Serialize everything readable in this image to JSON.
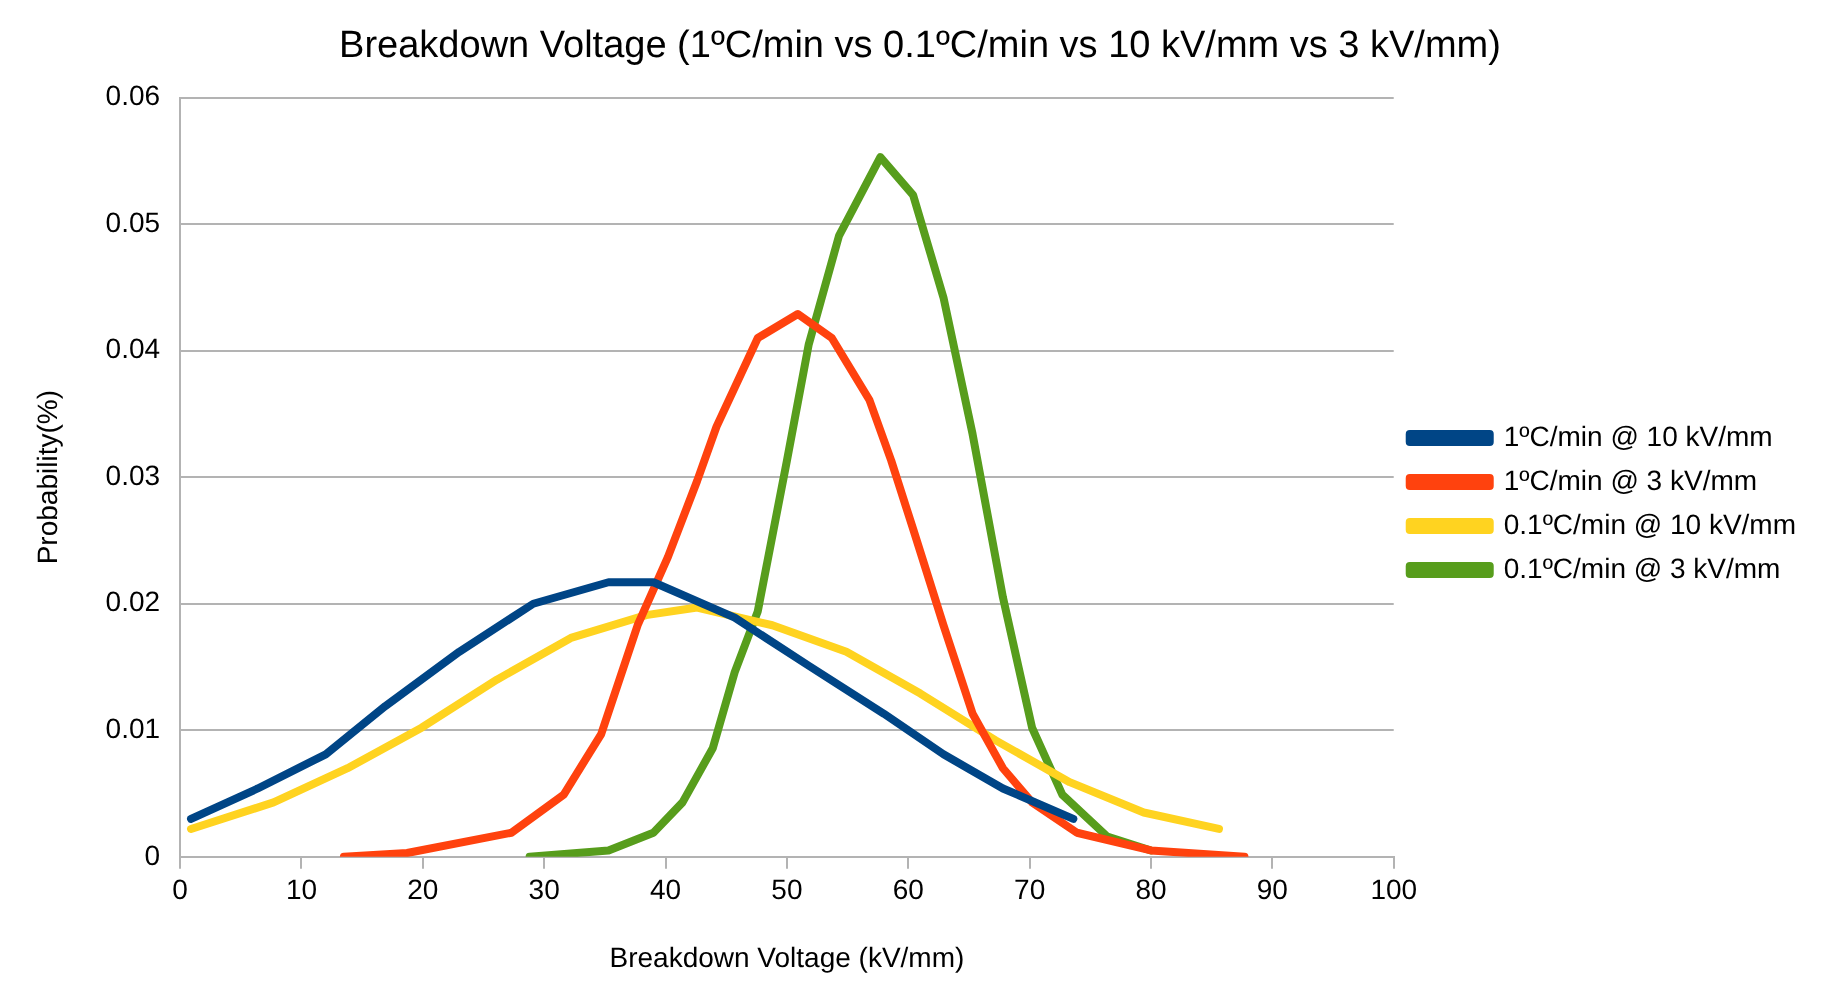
{
  "chart_data": {
    "type": "line",
    "title": "Breakdown Voltage (1ºC/min vs 0.1ºC/min vs 10 kV/mm vs 3 kV/mm)",
    "xlabel": "Breakdown Voltage (kV/mm)",
    "ylabel": "Probability(%)",
    "xlim": [
      0,
      100
    ],
    "xticks": [
      0,
      10,
      20,
      30,
      40,
      50,
      60,
      70,
      80,
      90,
      100
    ],
    "ylim": [
      0,
      0.06
    ],
    "yticks": [
      0,
      0.01,
      0.02,
      0.03,
      0.04,
      0.05,
      0.06
    ],
    "grid": "y",
    "legend": "right",
    "marker": "none",
    "line_style": "solid",
    "series": [
      {
        "name": "1ºC/min @ 10 kV/mm",
        "color": "#004586",
        "x": [
          0.9,
          6.4,
          12.0,
          16.9,
          23.0,
          29.1,
          35.3,
          39.0,
          45.7,
          51.8,
          58.0,
          62.9,
          67.8,
          73.6
        ],
        "values": [
          0.003,
          0.0054,
          0.0081,
          0.0119,
          0.0162,
          0.02,
          0.0217,
          0.0217,
          0.0189,
          0.0151,
          0.0113,
          0.0081,
          0.0054,
          0.003
        ]
      },
      {
        "name": "1ºC/min @ 3 kV/mm",
        "color": "#ff420e",
        "x": [
          13.5,
          18.7,
          27.3,
          31.6,
          34.7,
          37.7,
          40.2,
          42.6,
          44.2,
          47.6,
          50.9,
          53.7,
          56.8,
          58.6,
          60.4,
          62.9,
          65.3,
          67.8,
          70.2,
          73.9,
          80.0,
          87.7
        ],
        "values": [
          0,
          0.0003,
          0.0019,
          0.0049,
          0.0097,
          0.0183,
          0.0237,
          0.0297,
          0.034,
          0.041,
          0.0429,
          0.041,
          0.0361,
          0.0313,
          0.0259,
          0.0183,
          0.0113,
          0.007,
          0.0043,
          0.0019,
          0.0005,
          0
        ]
      },
      {
        "name": "0.1ºC/min @ 10 kV/mm",
        "color": "#ffd320",
        "x": [
          0.9,
          7.7,
          13.8,
          19.9,
          26.1,
          32.2,
          38.4,
          42.6,
          48.8,
          54.9,
          61.0,
          67.2,
          73.3,
          79.4,
          85.6
        ],
        "values": [
          0.0022,
          0.0043,
          0.007,
          0.0102,
          0.014,
          0.0173,
          0.0191,
          0.0197,
          0.0183,
          0.0162,
          0.0129,
          0.0092,
          0.0059,
          0.0035,
          0.0022
        ]
      },
      {
        "name": "0.1ºC/min @ 3 kV/mm",
        "color": "#579d1c",
        "x": [
          28.8,
          35.3,
          39.0,
          41.4,
          43.9,
          45.7,
          47.6,
          50.0,
          51.8,
          54.3,
          57.7,
          60.4,
          62.9,
          65.3,
          67.8,
          70.2,
          72.7,
          76.4,
          80.0
        ],
        "values": [
          0,
          0.0005,
          0.0019,
          0.0043,
          0.0086,
          0.0146,
          0.0194,
          0.0313,
          0.0405,
          0.0491,
          0.0553,
          0.0523,
          0.0442,
          0.0334,
          0.0205,
          0.0102,
          0.0049,
          0.0016,
          0.0005
        ]
      }
    ]
  }
}
